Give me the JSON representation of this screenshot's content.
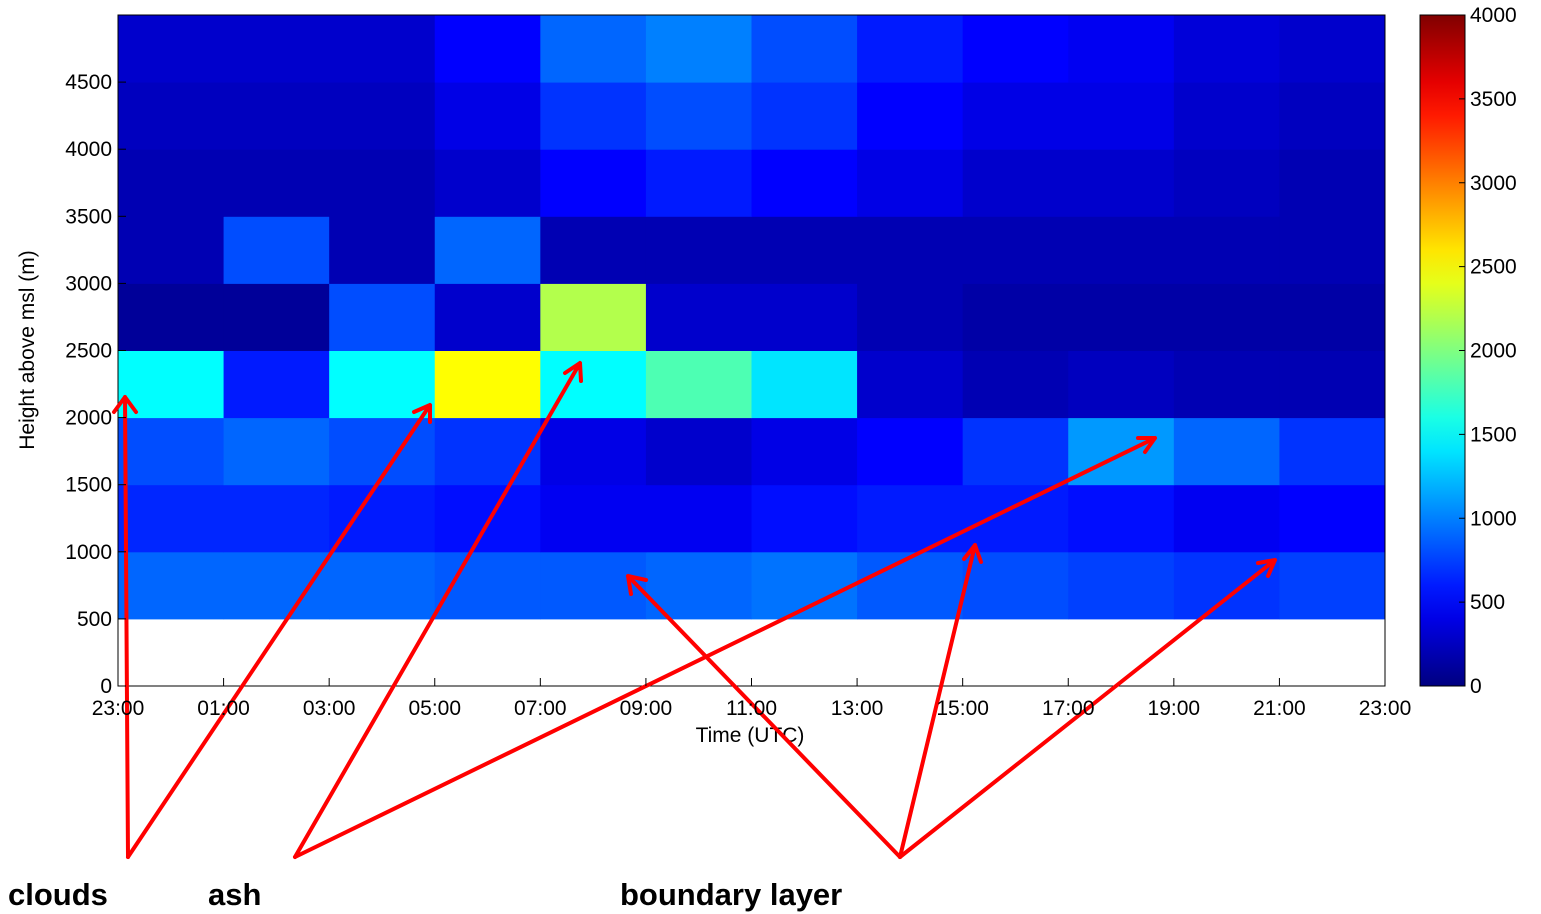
{
  "chart_data": {
    "type": "heatmap",
    "x_label": "Time (UTC)",
    "y_label": "Height above msl (m)",
    "x_bins": [
      0,
      2,
      4,
      6,
      8,
      10,
      12,
      14,
      16,
      18,
      20,
      22,
      24
    ],
    "y_bins": [
      500,
      1000,
      1500,
      2000,
      2500,
      3000,
      3500,
      4000,
      4500,
      5000
    ],
    "z": [
      [
        900,
        900,
        900,
        850,
        850,
        900,
        950,
        850,
        800,
        750,
        700,
        750
      ],
      [
        650,
        650,
        600,
        550,
        450,
        450,
        550,
        600,
        600,
        550,
        450,
        500
      ],
      [
        800,
        900,
        800,
        700,
        400,
        300,
        400,
        500,
        700,
        1100,
        900,
        700
      ],
      [
        1500,
        600,
        1500,
        2500,
        1500,
        1800,
        1400,
        300,
        200,
        250,
        200,
        200
      ],
      [
        100,
        100,
        800,
        300,
        2200,
        300,
        300,
        200,
        150,
        150,
        150,
        150
      ],
      [
        200,
        800,
        200,
        900,
        200,
        200,
        200,
        200,
        200,
        200,
        200,
        200
      ],
      [
        200,
        200,
        200,
        300,
        500,
        600,
        500,
        400,
        300,
        300,
        250,
        200
      ],
      [
        250,
        250,
        250,
        400,
        700,
        800,
        700,
        500,
        400,
        400,
        300,
        250
      ],
      [
        300,
        300,
        300,
        500,
        900,
        1000,
        800,
        600,
        500,
        450,
        350,
        300
      ]
    ],
    "colormap": "jet",
    "xlim": [
      0,
      24
    ],
    "xticks": [
      {
        "value": 0,
        "label": "23:00"
      },
      {
        "value": 2,
        "label": "01:00"
      },
      {
        "value": 4,
        "label": "03:00"
      },
      {
        "value": 6,
        "label": "05:00"
      },
      {
        "value": 8,
        "label": "07:00"
      },
      {
        "value": 10,
        "label": "09:00"
      },
      {
        "value": 12,
        "label": "11:00"
      },
      {
        "value": 14,
        "label": "13:00"
      },
      {
        "value": 16,
        "label": "15:00"
      },
      {
        "value": 18,
        "label": "17:00"
      },
      {
        "value": 20,
        "label": "19:00"
      },
      {
        "value": 22,
        "label": "21:00"
      },
      {
        "value": 24,
        "label": "23:00"
      }
    ],
    "ylim": [
      0,
      5000
    ],
    "yticks": [
      0,
      500,
      1000,
      1500,
      2000,
      2500,
      3000,
      3500,
      4000,
      4500
    ],
    "clim": [
      0,
      4000
    ],
    "cticks": [
      0,
      500,
      1000,
      1500,
      2000,
      2500,
      3000,
      3500,
      4000
    ],
    "annotations": [
      "clouds",
      "ash",
      "boundary layer"
    ]
  }
}
